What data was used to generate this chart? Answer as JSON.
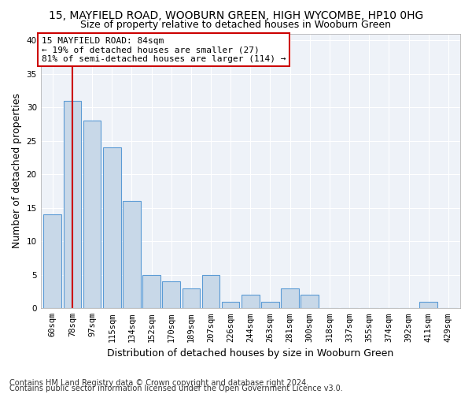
{
  "title": "15, MAYFIELD ROAD, WOOBURN GREEN, HIGH WYCOMBE, HP10 0HG",
  "subtitle": "Size of property relative to detached houses in Wooburn Green",
  "xlabel": "Distribution of detached houses by size in Wooburn Green",
  "ylabel": "Number of detached properties",
  "categories": [
    "60sqm",
    "78sqm",
    "97sqm",
    "115sqm",
    "134sqm",
    "152sqm",
    "170sqm",
    "189sqm",
    "207sqm",
    "226sqm",
    "244sqm",
    "263sqm",
    "281sqm",
    "300sqm",
    "318sqm",
    "337sqm",
    "355sqm",
    "374sqm",
    "392sqm",
    "411sqm",
    "429sqm"
  ],
  "values": [
    14,
    31,
    28,
    24,
    16,
    5,
    4,
    3,
    5,
    1,
    2,
    1,
    3,
    2,
    0,
    0,
    0,
    0,
    0,
    1,
    0
  ],
  "bar_color": "#c8d8e8",
  "bar_edge_color": "#5b9bd5",
  "vline_x": 1,
  "vline_color": "#cc0000",
  "annotation_text": "15 MAYFIELD ROAD: 84sqm\n← 19% of detached houses are smaller (27)\n81% of semi-detached houses are larger (114) →",
  "annotation_box_color": "#ffffff",
  "annotation_box_edge": "#cc0000",
  "ylim": [
    0,
    41
  ],
  "yticks": [
    0,
    5,
    10,
    15,
    20,
    25,
    30,
    35,
    40
  ],
  "footer1": "Contains HM Land Registry data © Crown copyright and database right 2024.",
  "footer2": "Contains public sector information licensed under the Open Government Licence v3.0.",
  "plot_bg_color": "#eef2f8",
  "title_fontsize": 10,
  "subtitle_fontsize": 9,
  "axis_label_fontsize": 9,
  "tick_fontsize": 7.5,
  "annotation_fontsize": 8,
  "footer_fontsize": 7
}
